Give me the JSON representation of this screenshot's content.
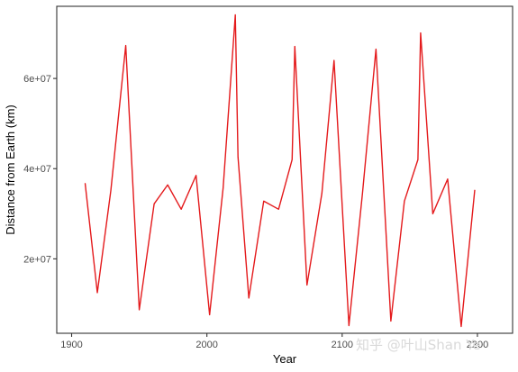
{
  "chart_data": {
    "type": "line",
    "title": "",
    "xlabel": "Year",
    "ylabel": "Distance from Earth (km)",
    "xlim": [
      1889,
      2226
    ],
    "ylim": [
      3500000,
      76000000
    ],
    "x_ticks": [
      1900,
      2000,
      2100,
      2200
    ],
    "x_tick_labels": [
      "1900",
      "2000",
      "2100",
      "2200"
    ],
    "y_ticks": [
      20000000,
      40000000,
      60000000
    ],
    "y_tick_labels": [
      "2e+07",
      "4e+07",
      "6e+07"
    ],
    "grid": false,
    "legend": "none",
    "series": [
      {
        "color": "#e41a1c",
        "points": [
          [
            1910,
            36700000
          ],
          [
            1919,
            12500000
          ],
          [
            1929,
            35200000
          ],
          [
            1940,
            67300000
          ],
          [
            1950,
            8700000
          ],
          [
            1961,
            32200000
          ],
          [
            1971,
            36400000
          ],
          [
            1981,
            31000000
          ],
          [
            1992,
            38500000
          ],
          [
            2002,
            7600000
          ],
          [
            2012,
            35700000
          ],
          [
            2021,
            74100000
          ],
          [
            2023,
            42600000
          ],
          [
            2031,
            11300000
          ],
          [
            2042,
            32800000
          ],
          [
            2053,
            31000000
          ],
          [
            2063,
            42000000
          ],
          [
            2065,
            67100000
          ],
          [
            2074,
            14200000
          ],
          [
            2085,
            34500000
          ],
          [
            2094,
            64000000
          ],
          [
            2105,
            5200000
          ],
          [
            2115,
            34500000
          ],
          [
            2125,
            66500000
          ],
          [
            2136,
            6200000
          ],
          [
            2146,
            32800000
          ],
          [
            2156,
            42000000
          ],
          [
            2158,
            70100000
          ],
          [
            2167,
            30000000
          ],
          [
            2178,
            37700000
          ],
          [
            2188,
            5000000
          ],
          [
            2198,
            35200000
          ]
        ]
      }
    ]
  },
  "watermark": "知乎 @叶山Shan Ye"
}
